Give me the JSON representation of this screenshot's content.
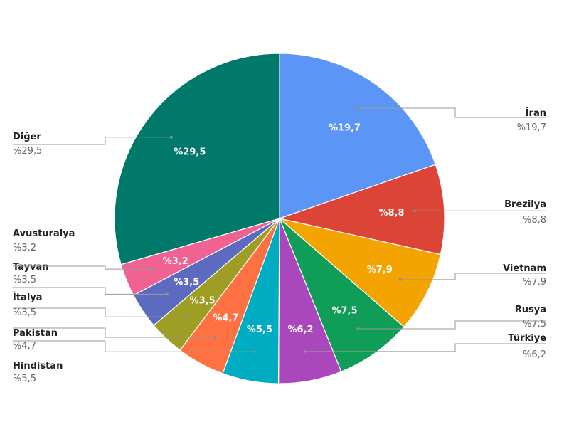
{
  "chart_data": {
    "type": "pie",
    "start_angle_deg": 0,
    "direction": "clockwise",
    "slices": [
      {
        "label": "İran",
        "value": 19.7,
        "display": "%19,7",
        "color": "#5b95f5",
        "side": "right"
      },
      {
        "label": "Brezilya",
        "value": 8.8,
        "display": "%8,8",
        "color": "#db4437",
        "side": "right"
      },
      {
        "label": "Vietnam",
        "value": 7.9,
        "display": "%7,9",
        "color": "#f4a400",
        "side": "right"
      },
      {
        "label": "Rusya",
        "value": 7.5,
        "display": "%7,5",
        "color": "#109d58",
        "side": "right"
      },
      {
        "label": "Türkiye",
        "value": 6.2,
        "display": "%6,2",
        "color": "#ab47bc",
        "side": "right"
      },
      {
        "label": "Hindistan",
        "value": 5.5,
        "display": "%5,5",
        "color": "#00acc1",
        "side": "left"
      },
      {
        "label": "Pakistan",
        "value": 4.7,
        "display": "%4,7",
        "color": "#ff7043",
        "side": "left"
      },
      {
        "label": "İtalya",
        "value": 3.5,
        "display": "%3,5",
        "color": "#9e9d24",
        "side": "left"
      },
      {
        "label": "Tayvan",
        "value": 3.5,
        "display": "%3,5",
        "color": "#5c6bc0",
        "side": "left"
      },
      {
        "label": "Avusturalya",
        "value": 3.2,
        "display": "%3,2",
        "color": "#f06292",
        "side": "left"
      },
      {
        "label": "Diğer",
        "value": 29.5,
        "display": "%29,5",
        "color": "#00796b",
        "side": "left"
      }
    ],
    "legend": "none"
  }
}
